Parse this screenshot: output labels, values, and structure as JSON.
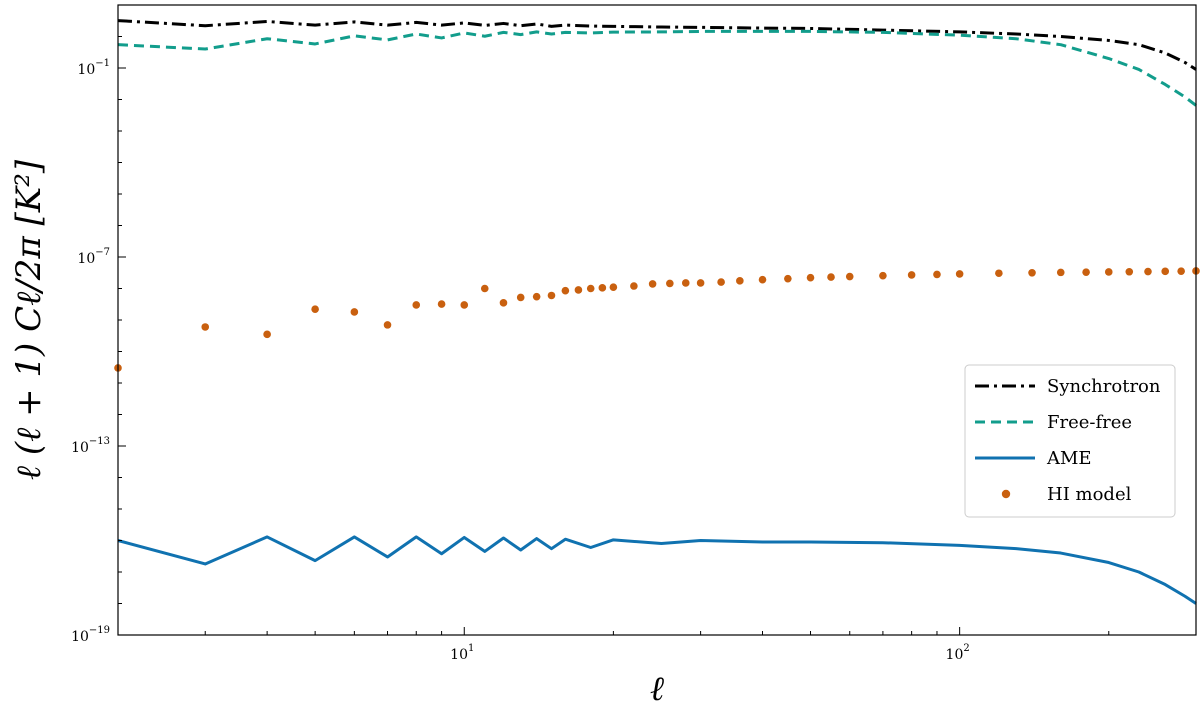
{
  "chart_data": {
    "type": "line",
    "title": "",
    "xlabel": "ℓ",
    "ylabel": "ℓ (ℓ + 1) Cℓ/2π [K²]",
    "xscale": "log",
    "yscale": "log",
    "xlim": [
      2,
      300
    ],
    "ylim": [
      1e-19,
      10
    ],
    "xticks": [
      {
        "value": 10,
        "base": "10",
        "exp": "1"
      },
      {
        "value": 100,
        "base": "10",
        "exp": "2"
      }
    ],
    "yticks": [
      {
        "value": 0.1,
        "base": "10",
        "exp": "−1"
      },
      {
        "value": 1e-07,
        "base": "10",
        "exp": "−7"
      },
      {
        "value": 1e-13,
        "base": "10",
        "exp": "−13"
      },
      {
        "value": 1e-19,
        "base": "10",
        "exp": "−19"
      }
    ],
    "grid": false,
    "legend_position": "right",
    "series": [
      {
        "name": "Synchrotron",
        "style": "dashdot",
        "color": "#000000",
        "points": [
          [
            2,
            3.2
          ],
          [
            3,
            2.2
          ],
          [
            4,
            3.0
          ],
          [
            5,
            2.3
          ],
          [
            6,
            2.9
          ],
          [
            7,
            2.3
          ],
          [
            8,
            2.8
          ],
          [
            9,
            2.3
          ],
          [
            10,
            2.7
          ],
          [
            11,
            2.25
          ],
          [
            12,
            2.6
          ],
          [
            13,
            2.2
          ],
          [
            14,
            2.5
          ],
          [
            15,
            2.1
          ],
          [
            16,
            2.3
          ],
          [
            18,
            2.15
          ],
          [
            20,
            2.1
          ],
          [
            25,
            2.0
          ],
          [
            30,
            1.95
          ],
          [
            40,
            1.85
          ],
          [
            50,
            1.8
          ],
          [
            70,
            1.6
          ],
          [
            100,
            1.4
          ],
          [
            130,
            1.2
          ],
          [
            160,
            1.0
          ],
          [
            200,
            0.75
          ],
          [
            230,
            0.55
          ],
          [
            260,
            0.3
          ],
          [
            285,
            0.15
          ],
          [
            300,
            0.09
          ]
        ]
      },
      {
        "name": "Free-free",
        "style": "dashed",
        "color": "#129d8c",
        "points": [
          [
            2,
            0.55
          ],
          [
            3,
            0.4
          ],
          [
            4,
            0.85
          ],
          [
            5,
            0.58
          ],
          [
            6,
            1.05
          ],
          [
            7,
            0.78
          ],
          [
            8,
            1.2
          ],
          [
            9,
            0.9
          ],
          [
            10,
            1.3
          ],
          [
            11,
            1.02
          ],
          [
            12,
            1.35
          ],
          [
            13,
            1.15
          ],
          [
            14,
            1.4
          ],
          [
            15,
            1.2
          ],
          [
            16,
            1.35
          ],
          [
            18,
            1.3
          ],
          [
            20,
            1.38
          ],
          [
            25,
            1.4
          ],
          [
            30,
            1.45
          ],
          [
            40,
            1.45
          ],
          [
            50,
            1.45
          ],
          [
            70,
            1.35
          ],
          [
            100,
            1.1
          ],
          [
            130,
            0.85
          ],
          [
            160,
            0.55
          ],
          [
            200,
            0.2
          ],
          [
            230,
            0.09
          ],
          [
            260,
            0.03
          ],
          [
            285,
            0.012
          ],
          [
            300,
            0.0065
          ]
        ]
      },
      {
        "name": "AME",
        "style": "solid",
        "color": "#1072b0",
        "points": [
          [
            2,
            1e-16
          ],
          [
            3,
            1.8e-17
          ],
          [
            4,
            1.3e-16
          ],
          [
            5,
            2.3e-17
          ],
          [
            6,
            1.3e-16
          ],
          [
            7,
            3e-17
          ],
          [
            8,
            1.3e-16
          ],
          [
            9,
            3.8e-17
          ],
          [
            10,
            1.25e-16
          ],
          [
            11,
            4.5e-17
          ],
          [
            12,
            1.2e-16
          ],
          [
            13,
            5e-17
          ],
          [
            14,
            1.15e-16
          ],
          [
            15,
            5.5e-17
          ],
          [
            16,
            1.1e-16
          ],
          [
            18,
            6e-17
          ],
          [
            20,
            1.05e-16
          ],
          [
            25,
            8e-17
          ],
          [
            30,
            1e-16
          ],
          [
            40,
            9e-17
          ],
          [
            50,
            9e-17
          ],
          [
            70,
            8.5e-17
          ],
          [
            100,
            7e-17
          ],
          [
            130,
            5.5e-17
          ],
          [
            160,
            4e-17
          ],
          [
            200,
            2e-17
          ],
          [
            230,
            1e-17
          ],
          [
            260,
            4e-18
          ],
          [
            285,
            1.7e-18
          ],
          [
            300,
            1e-18
          ]
        ]
      },
      {
        "name": "HI model",
        "style": "dots",
        "color": "#c9600f",
        "points": [
          [
            2,
            3e-11
          ],
          [
            3,
            6e-10
          ],
          [
            4,
            3.5e-10
          ],
          [
            5,
            2.2e-09
          ],
          [
            6,
            1.8e-09
          ],
          [
            7,
            7e-10
          ],
          [
            8,
            3e-09
          ],
          [
            9,
            3.2e-09
          ],
          [
            10,
            3e-09
          ],
          [
            11,
            1e-08
          ],
          [
            12,
            3.5e-09
          ],
          [
            13,
            5.2e-09
          ],
          [
            14,
            5.5e-09
          ],
          [
            15,
            6e-09
          ],
          [
            16,
            8.5e-09
          ],
          [
            17,
            9e-09
          ],
          [
            18,
            1e-08
          ],
          [
            19,
            1.05e-08
          ],
          [
            20,
            1.1e-08
          ],
          [
            22,
            1.2e-08
          ],
          [
            24,
            1.4e-08
          ],
          [
            26,
            1.45e-08
          ],
          [
            28,
            1.5e-08
          ],
          [
            30,
            1.5e-08
          ],
          [
            33,
            1.6e-08
          ],
          [
            36,
            1.75e-08
          ],
          [
            40,
            1.9e-08
          ],
          [
            45,
            2.05e-08
          ],
          [
            50,
            2.2e-08
          ],
          [
            55,
            2.3e-08
          ],
          [
            60,
            2.4e-08
          ],
          [
            70,
            2.55e-08
          ],
          [
            80,
            2.7e-08
          ],
          [
            90,
            2.8e-08
          ],
          [
            100,
            2.9e-08
          ],
          [
            120,
            3.05e-08
          ],
          [
            140,
            3.15e-08
          ],
          [
            160,
            3.25e-08
          ],
          [
            180,
            3.3e-08
          ],
          [
            200,
            3.35e-08
          ],
          [
            220,
            3.4e-08
          ],
          [
            240,
            3.45e-08
          ],
          [
            260,
            3.5e-08
          ],
          [
            280,
            3.55e-08
          ],
          [
            300,
            3.6e-08
          ]
        ]
      }
    ]
  }
}
